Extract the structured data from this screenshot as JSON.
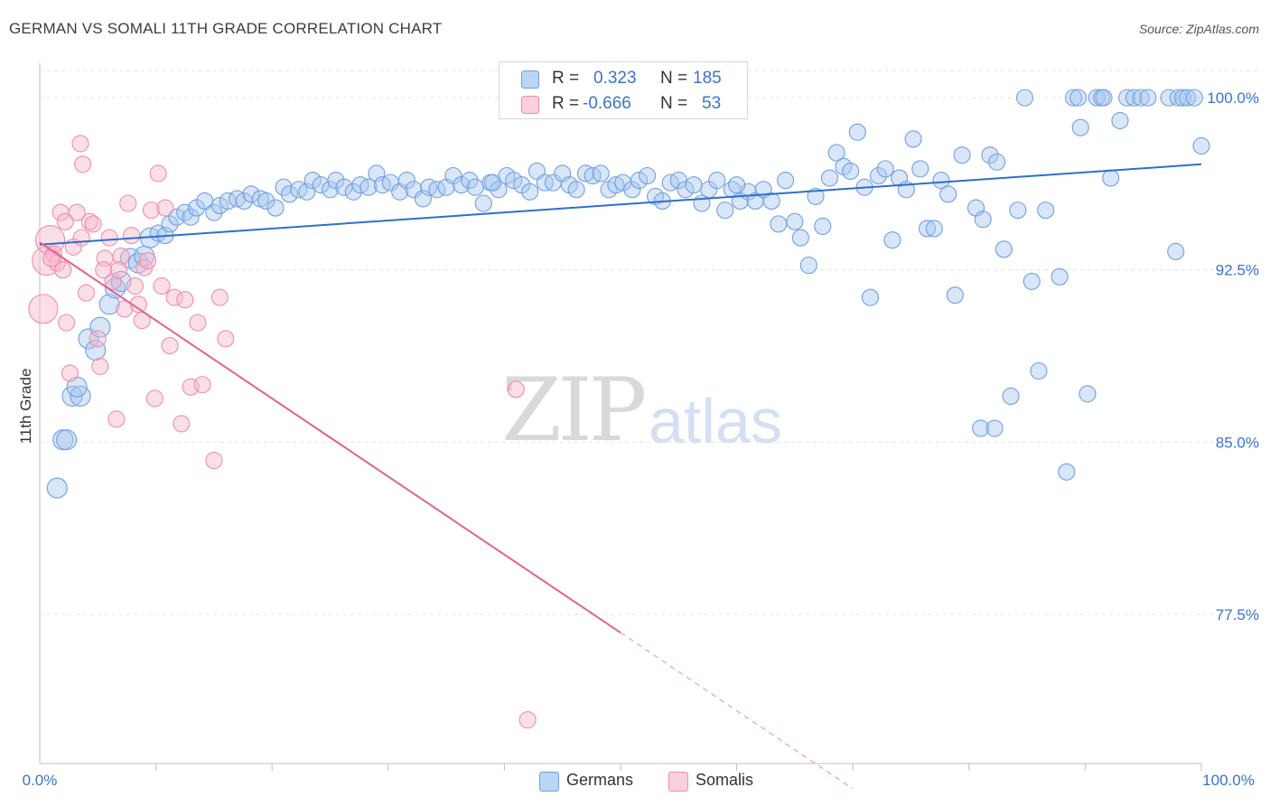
{
  "title": "GERMAN VS SOMALI 11TH GRADE CORRELATION CHART",
  "source": "Source: ZipAtlas.com",
  "watermark": {
    "zip": "ZIP",
    "atlas": "atlas"
  },
  "legend": {
    "rows": [
      {
        "r_label": "R =",
        "r_value": "0.323",
        "n_label": "N =",
        "n_value": "185",
        "color": "#a9c8ef"
      },
      {
        "r_label": "R =",
        "r_value": "-0.666",
        "n_label": "N =",
        "n_value": "53",
        "color": "#f7b9cb"
      }
    ]
  },
  "bottom_legend": [
    {
      "label": "Germans",
      "color": "#a9c8ef"
    },
    {
      "label": "Somalis",
      "color": "#f7b9cb"
    }
  ],
  "chart_data": {
    "type": "scatter",
    "title": "GERMAN VS SOMALI 11TH GRADE CORRELATION CHART",
    "xlabel": "",
    "ylabel": "11th Grade",
    "xlim": [
      0,
      100
    ],
    "ylim": [
      71.0,
      101.5
    ],
    "x_tick_labels": [
      "0.0%",
      "100.0%"
    ],
    "y_ticks": [
      77.5,
      85.0,
      92.5,
      100.0
    ],
    "y_tick_labels": [
      "77.5%",
      "85.0%",
      "92.5%",
      "100.0%"
    ],
    "grid": true,
    "legend_position": "top-center",
    "series": [
      {
        "name": "Germans",
        "color": "#6fa0e0",
        "trend": {
          "x0": 0,
          "y0": 93.6,
          "x1": 100,
          "y1": 97.1
        },
        "points": [
          [
            1.5,
            83.0
          ],
          [
            2,
            85.1
          ],
          [
            2.3,
            85.1
          ],
          [
            2.8,
            87.0
          ],
          [
            3.5,
            87.0
          ],
          [
            3.2,
            87.4
          ],
          [
            4.2,
            89.5
          ],
          [
            4.8,
            89.0
          ],
          [
            5.2,
            90.0
          ],
          [
            6.0,
            91.0
          ],
          [
            6.5,
            91.7
          ],
          [
            7.0,
            92.0
          ],
          [
            7.8,
            93.0
          ],
          [
            8.5,
            92.8
          ],
          [
            9.0,
            93.1
          ],
          [
            9.5,
            93.9
          ],
          [
            10.2,
            94.1
          ],
          [
            10.8,
            94.0
          ],
          [
            11.2,
            94.5
          ],
          [
            11.8,
            94.8
          ],
          [
            12.5,
            95.0
          ],
          [
            13.0,
            94.8
          ],
          [
            13.5,
            95.2
          ],
          [
            14.2,
            95.5
          ],
          [
            15.0,
            95.0
          ],
          [
            15.5,
            95.3
          ],
          [
            16.2,
            95.5
          ],
          [
            17.0,
            95.6
          ],
          [
            17.6,
            95.5
          ],
          [
            18.2,
            95.8
          ],
          [
            19.0,
            95.6
          ],
          [
            19.5,
            95.5
          ],
          [
            20.3,
            95.2
          ],
          [
            21.0,
            96.1
          ],
          [
            21.5,
            95.8
          ],
          [
            22.3,
            96.0
          ],
          [
            23.0,
            95.9
          ],
          [
            23.5,
            96.4
          ],
          [
            24.2,
            96.2
          ],
          [
            25.0,
            96.0
          ],
          [
            25.5,
            96.4
          ],
          [
            26.2,
            96.1
          ],
          [
            27.0,
            95.9
          ],
          [
            27.6,
            96.2
          ],
          [
            28.3,
            96.1
          ],
          [
            29.0,
            96.7
          ],
          [
            29.5,
            96.2
          ],
          [
            30.2,
            96.3
          ],
          [
            31.0,
            95.9
          ],
          [
            31.6,
            96.4
          ],
          [
            32.2,
            96.0
          ],
          [
            33.0,
            95.6
          ],
          [
            33.5,
            96.1
          ],
          [
            34.2,
            96.0
          ],
          [
            35.0,
            96.1
          ],
          [
            35.6,
            96.6
          ],
          [
            36.3,
            96.2
          ],
          [
            37.0,
            96.4
          ],
          [
            37.5,
            96.1
          ],
          [
            38.2,
            95.4
          ],
          [
            38.8,
            96.3
          ],
          [
            39.5,
            96.0
          ],
          [
            40.2,
            96.6
          ],
          [
            40.8,
            96.4
          ],
          [
            41.5,
            96.2
          ],
          [
            42.2,
            95.9
          ],
          [
            42.8,
            96.8
          ],
          [
            43.5,
            96.3
          ],
          [
            44.2,
            96.3
          ],
          [
            45.0,
            96.7
          ],
          [
            45.6,
            96.2
          ],
          [
            46.2,
            96.0
          ],
          [
            47.0,
            96.7
          ],
          [
            47.6,
            96.6
          ],
          [
            48.3,
            96.7
          ],
          [
            49.0,
            96.0
          ],
          [
            49.6,
            96.2
          ],
          [
            50.2,
            96.3
          ],
          [
            51.0,
            96.0
          ],
          [
            51.6,
            96.4
          ],
          [
            52.3,
            96.6
          ],
          [
            53.0,
            95.7
          ],
          [
            53.6,
            95.5
          ],
          [
            54.3,
            96.3
          ],
          [
            55.0,
            96.4
          ],
          [
            55.6,
            96.0
          ],
          [
            56.3,
            96.2
          ],
          [
            57.0,
            95.4
          ],
          [
            57.6,
            96.0
          ],
          [
            58.3,
            96.4
          ],
          [
            59.0,
            95.1
          ],
          [
            59.6,
            96.0
          ],
          [
            60.3,
            95.5
          ],
          [
            61.0,
            95.9
          ],
          [
            61.6,
            95.5
          ],
          [
            62.3,
            96.0
          ],
          [
            63.0,
            95.5
          ],
          [
            63.6,
            94.5
          ],
          [
            64.2,
            96.4
          ],
          [
            65.0,
            94.6
          ],
          [
            65.5,
            93.9
          ],
          [
            66.2,
            92.7
          ],
          [
            66.8,
            95.7
          ],
          [
            67.4,
            94.4
          ],
          [
            68.0,
            96.5
          ],
          [
            68.6,
            97.6
          ],
          [
            69.2,
            97.0
          ],
          [
            69.8,
            96.8
          ],
          [
            70.4,
            98.5
          ],
          [
            71.0,
            96.1
          ],
          [
            71.5,
            91.3
          ],
          [
            72.2,
            96.6
          ],
          [
            72.8,
            96.9
          ],
          [
            73.4,
            93.8
          ],
          [
            74.0,
            96.5
          ],
          [
            74.6,
            96.0
          ],
          [
            75.2,
            98.2
          ],
          [
            75.8,
            96.9
          ],
          [
            76.4,
            94.3
          ],
          [
            77.0,
            94.3
          ],
          [
            77.6,
            96.4
          ],
          [
            78.2,
            95.8
          ],
          [
            78.8,
            91.4
          ],
          [
            79.4,
            97.5
          ],
          [
            80.6,
            95.2
          ],
          [
            81.2,
            94.7
          ],
          [
            81.8,
            97.5
          ],
          [
            82.4,
            97.2
          ],
          [
            83.0,
            93.4
          ],
          [
            83.6,
            87.0
          ],
          [
            84.2,
            95.1
          ],
          [
            84.8,
            100.0
          ],
          [
            85.4,
            92.0
          ],
          [
            86.0,
            88.1
          ],
          [
            86.6,
            95.1
          ],
          [
            87.8,
            92.2
          ],
          [
            88.4,
            83.7
          ],
          [
            89.0,
            100.0
          ],
          [
            89.4,
            100.0
          ],
          [
            89.6,
            98.7
          ],
          [
            90.2,
            87.1
          ],
          [
            91.0,
            100.0
          ],
          [
            91.4,
            100.0
          ],
          [
            91.6,
            100.0
          ],
          [
            92.2,
            96.5
          ],
          [
            93.0,
            99.0
          ],
          [
            93.6,
            100.0
          ],
          [
            94.2,
            100.0
          ],
          [
            94.8,
            100.0
          ],
          [
            95.4,
            100.0
          ],
          [
            97.2,
            100.0
          ],
          [
            97.8,
            93.3
          ],
          [
            98.0,
            100.0
          ],
          [
            98.4,
            100.0
          ],
          [
            98.8,
            100.0
          ],
          [
            99.4,
            100.0
          ],
          [
            100.0,
            97.9
          ],
          [
            81.0,
            85.6
          ],
          [
            82.2,
            85.6
          ],
          [
            60.0,
            96.2
          ],
          [
            39.0,
            96.3
          ]
        ]
      },
      {
        "name": "Somalis",
        "color": "#f08cab",
        "trend": {
          "x0": 0,
          "y0": 93.7,
          "x1": 50,
          "y1": 76.7,
          "dash_to_x": 70,
          "dash_to_y": 69.9
        },
        "points": [
          [
            0.3,
            90.8
          ],
          [
            0.6,
            92.9
          ],
          [
            0.9,
            93.8
          ],
          [
            1.2,
            93.2
          ],
          [
            1.5,
            92.8
          ],
          [
            1.8,
            95.0
          ],
          [
            2.0,
            92.5
          ],
          [
            2.3,
            90.2
          ],
          [
            2.6,
            88.0
          ],
          [
            2.9,
            93.5
          ],
          [
            3.2,
            95.0
          ],
          [
            3.6,
            93.9
          ],
          [
            4.0,
            91.5
          ],
          [
            4.3,
            94.6
          ],
          [
            4.6,
            94.5
          ],
          [
            5.0,
            89.5
          ],
          [
            5.2,
            88.3
          ],
          [
            5.6,
            93.0
          ],
          [
            6.0,
            93.9
          ],
          [
            6.3,
            92.0
          ],
          [
            6.6,
            86.0
          ],
          [
            7.0,
            93.1
          ],
          [
            7.3,
            90.8
          ],
          [
            7.6,
            95.4
          ],
          [
            7.9,
            94.0
          ],
          [
            8.2,
            91.8
          ],
          [
            8.5,
            91.0
          ],
          [
            8.8,
            90.3
          ],
          [
            9.0,
            92.6
          ],
          [
            9.3,
            92.9
          ],
          [
            9.6,
            95.1
          ],
          [
            9.9,
            86.9
          ],
          [
            10.2,
            96.7
          ],
          [
            10.5,
            91.8
          ],
          [
            10.8,
            95.2
          ],
          [
            11.2,
            89.2
          ],
          [
            11.6,
            91.3
          ],
          [
            12.2,
            85.8
          ],
          [
            12.5,
            91.2
          ],
          [
            13.0,
            87.4
          ],
          [
            13.6,
            90.2
          ],
          [
            14.0,
            87.5
          ],
          [
            15.0,
            84.2
          ],
          [
            15.5,
            91.3
          ],
          [
            16.0,
            89.5
          ],
          [
            41.0,
            87.3
          ],
          [
            42.0,
            72.9
          ],
          [
            3.5,
            98.0
          ],
          [
            3.7,
            97.1
          ],
          [
            2.2,
            94.6
          ],
          [
            1.0,
            93.0
          ],
          [
            5.5,
            92.5
          ],
          [
            6.8,
            92.5
          ]
        ]
      }
    ]
  }
}
